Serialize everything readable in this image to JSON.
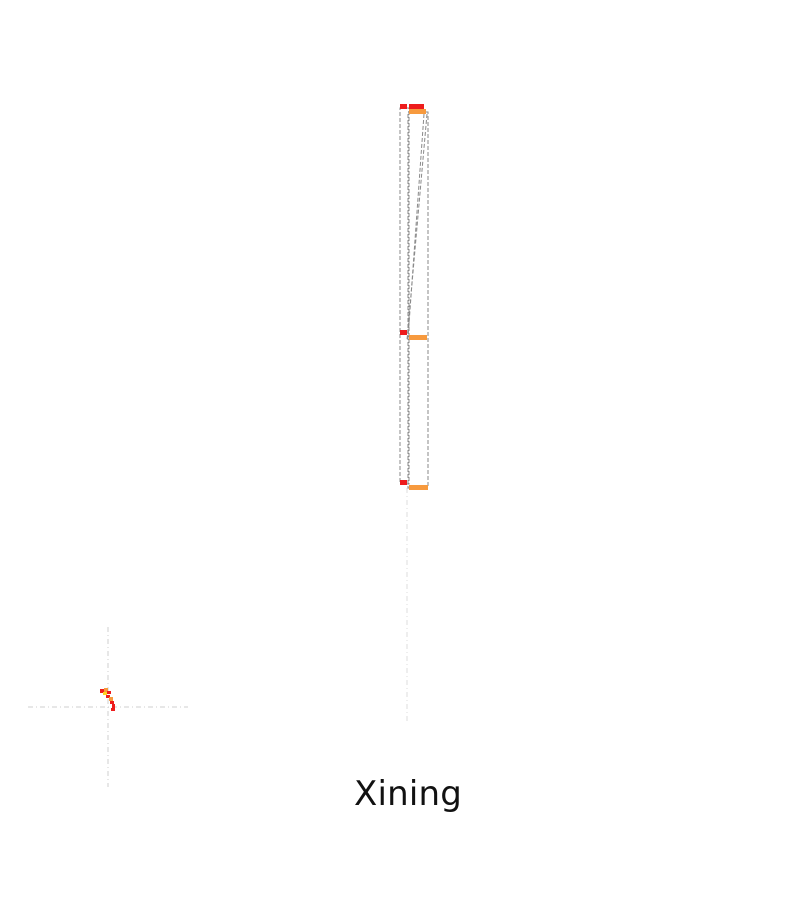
{
  "map": {
    "city_label": "Xining",
    "colors": {
      "red": "#ee1c1c",
      "orange": "#f79a3e",
      "yellow": "#ffd21f",
      "stroke": "#8a8a8a",
      "guide": "#cfcfcf"
    }
  }
}
